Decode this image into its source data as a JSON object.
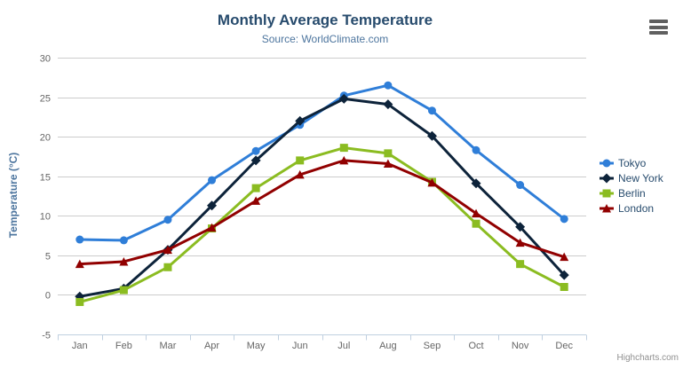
{
  "header": {
    "title": "Monthly Average Temperature",
    "subtitle": "Source: WorldClimate.com"
  },
  "chart_data": {
    "type": "line",
    "title": "Monthly Average Temperature",
    "subtitle": "Source: WorldClimate.com",
    "categories": [
      "Jan",
      "Feb",
      "Mar",
      "Apr",
      "May",
      "Jun",
      "Jul",
      "Aug",
      "Sep",
      "Oct",
      "Nov",
      "Dec"
    ],
    "series": [
      {
        "name": "Tokyo",
        "marker": "circle",
        "color": "#2f7ed8",
        "values": [
          7.0,
          6.9,
          9.5,
          14.5,
          18.2,
          21.5,
          25.2,
          26.5,
          23.3,
          18.3,
          13.9,
          9.6
        ]
      },
      {
        "name": "New York",
        "marker": "diamond",
        "color": "#0d233a",
        "values": [
          -0.2,
          0.8,
          5.7,
          11.3,
          17.0,
          22.0,
          24.8,
          24.1,
          20.1,
          14.1,
          8.6,
          2.5
        ]
      },
      {
        "name": "Berlin",
        "marker": "square",
        "color": "#8bbc21",
        "values": [
          -0.9,
          0.6,
          3.5,
          8.4,
          13.5,
          17.0,
          18.6,
          17.9,
          14.3,
          9.0,
          3.9,
          1.0
        ]
      },
      {
        "name": "London",
        "marker": "triangle",
        "color": "#910000",
        "values": [
          3.9,
          4.2,
          5.7,
          8.5,
          11.9,
          15.2,
          17.0,
          16.6,
          14.2,
          10.3,
          6.6,
          4.8
        ]
      }
    ],
    "xlabel": "",
    "ylabel": "Temperature (°C)",
    "ylim": [
      -5,
      30
    ],
    "yticks": [
      -5,
      0,
      5,
      10,
      15,
      20,
      25,
      30
    ],
    "grid": true,
    "legend_position": "right"
  },
  "credits": {
    "label": "Highcharts.com"
  },
  "icons": {
    "export_menu": "hamburger-menu-icon"
  },
  "colors": {
    "title": "#274b6d",
    "subtitle": "#4d759e",
    "axis_title": "#4d759e",
    "tick_label": "#666666",
    "grid": "#cccccc",
    "axis_line": "#c0d0e0",
    "legend_text": "#274b6d",
    "credits": "#909090",
    "menu_icon": "#606060",
    "background": "#ffffff"
  }
}
